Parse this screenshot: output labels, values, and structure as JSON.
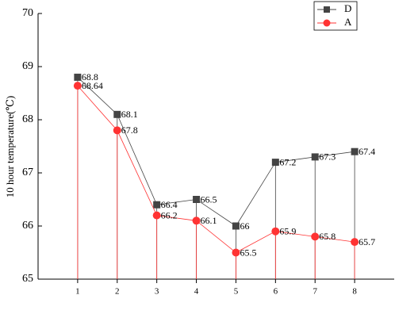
{
  "chart_data": {
    "type": "line",
    "y_label": "10 hour temperature(℃)",
    "x": [
      1,
      2,
      3,
      4,
      5,
      6,
      7,
      8
    ],
    "xlim": [
      0,
      9
    ],
    "xticks": [
      1,
      2,
      3,
      4,
      5,
      6,
      7,
      8
    ],
    "ylim": [
      65,
      70
    ],
    "yticks": [
      65,
      66,
      67,
      68,
      69,
      70
    ],
    "legend": "upper right",
    "series": [
      {
        "name": "D",
        "color": "#444444",
        "marker": "square",
        "values": [
          68.8,
          68.1,
          66.4,
          66.5,
          66,
          67.2,
          67.3,
          67.4
        ]
      },
      {
        "name": "A",
        "color": "#ff3333",
        "marker": "circle",
        "values": [
          68.64,
          67.8,
          66.2,
          66.1,
          65.5,
          65.9,
          65.8,
          65.7
        ]
      }
    ]
  }
}
